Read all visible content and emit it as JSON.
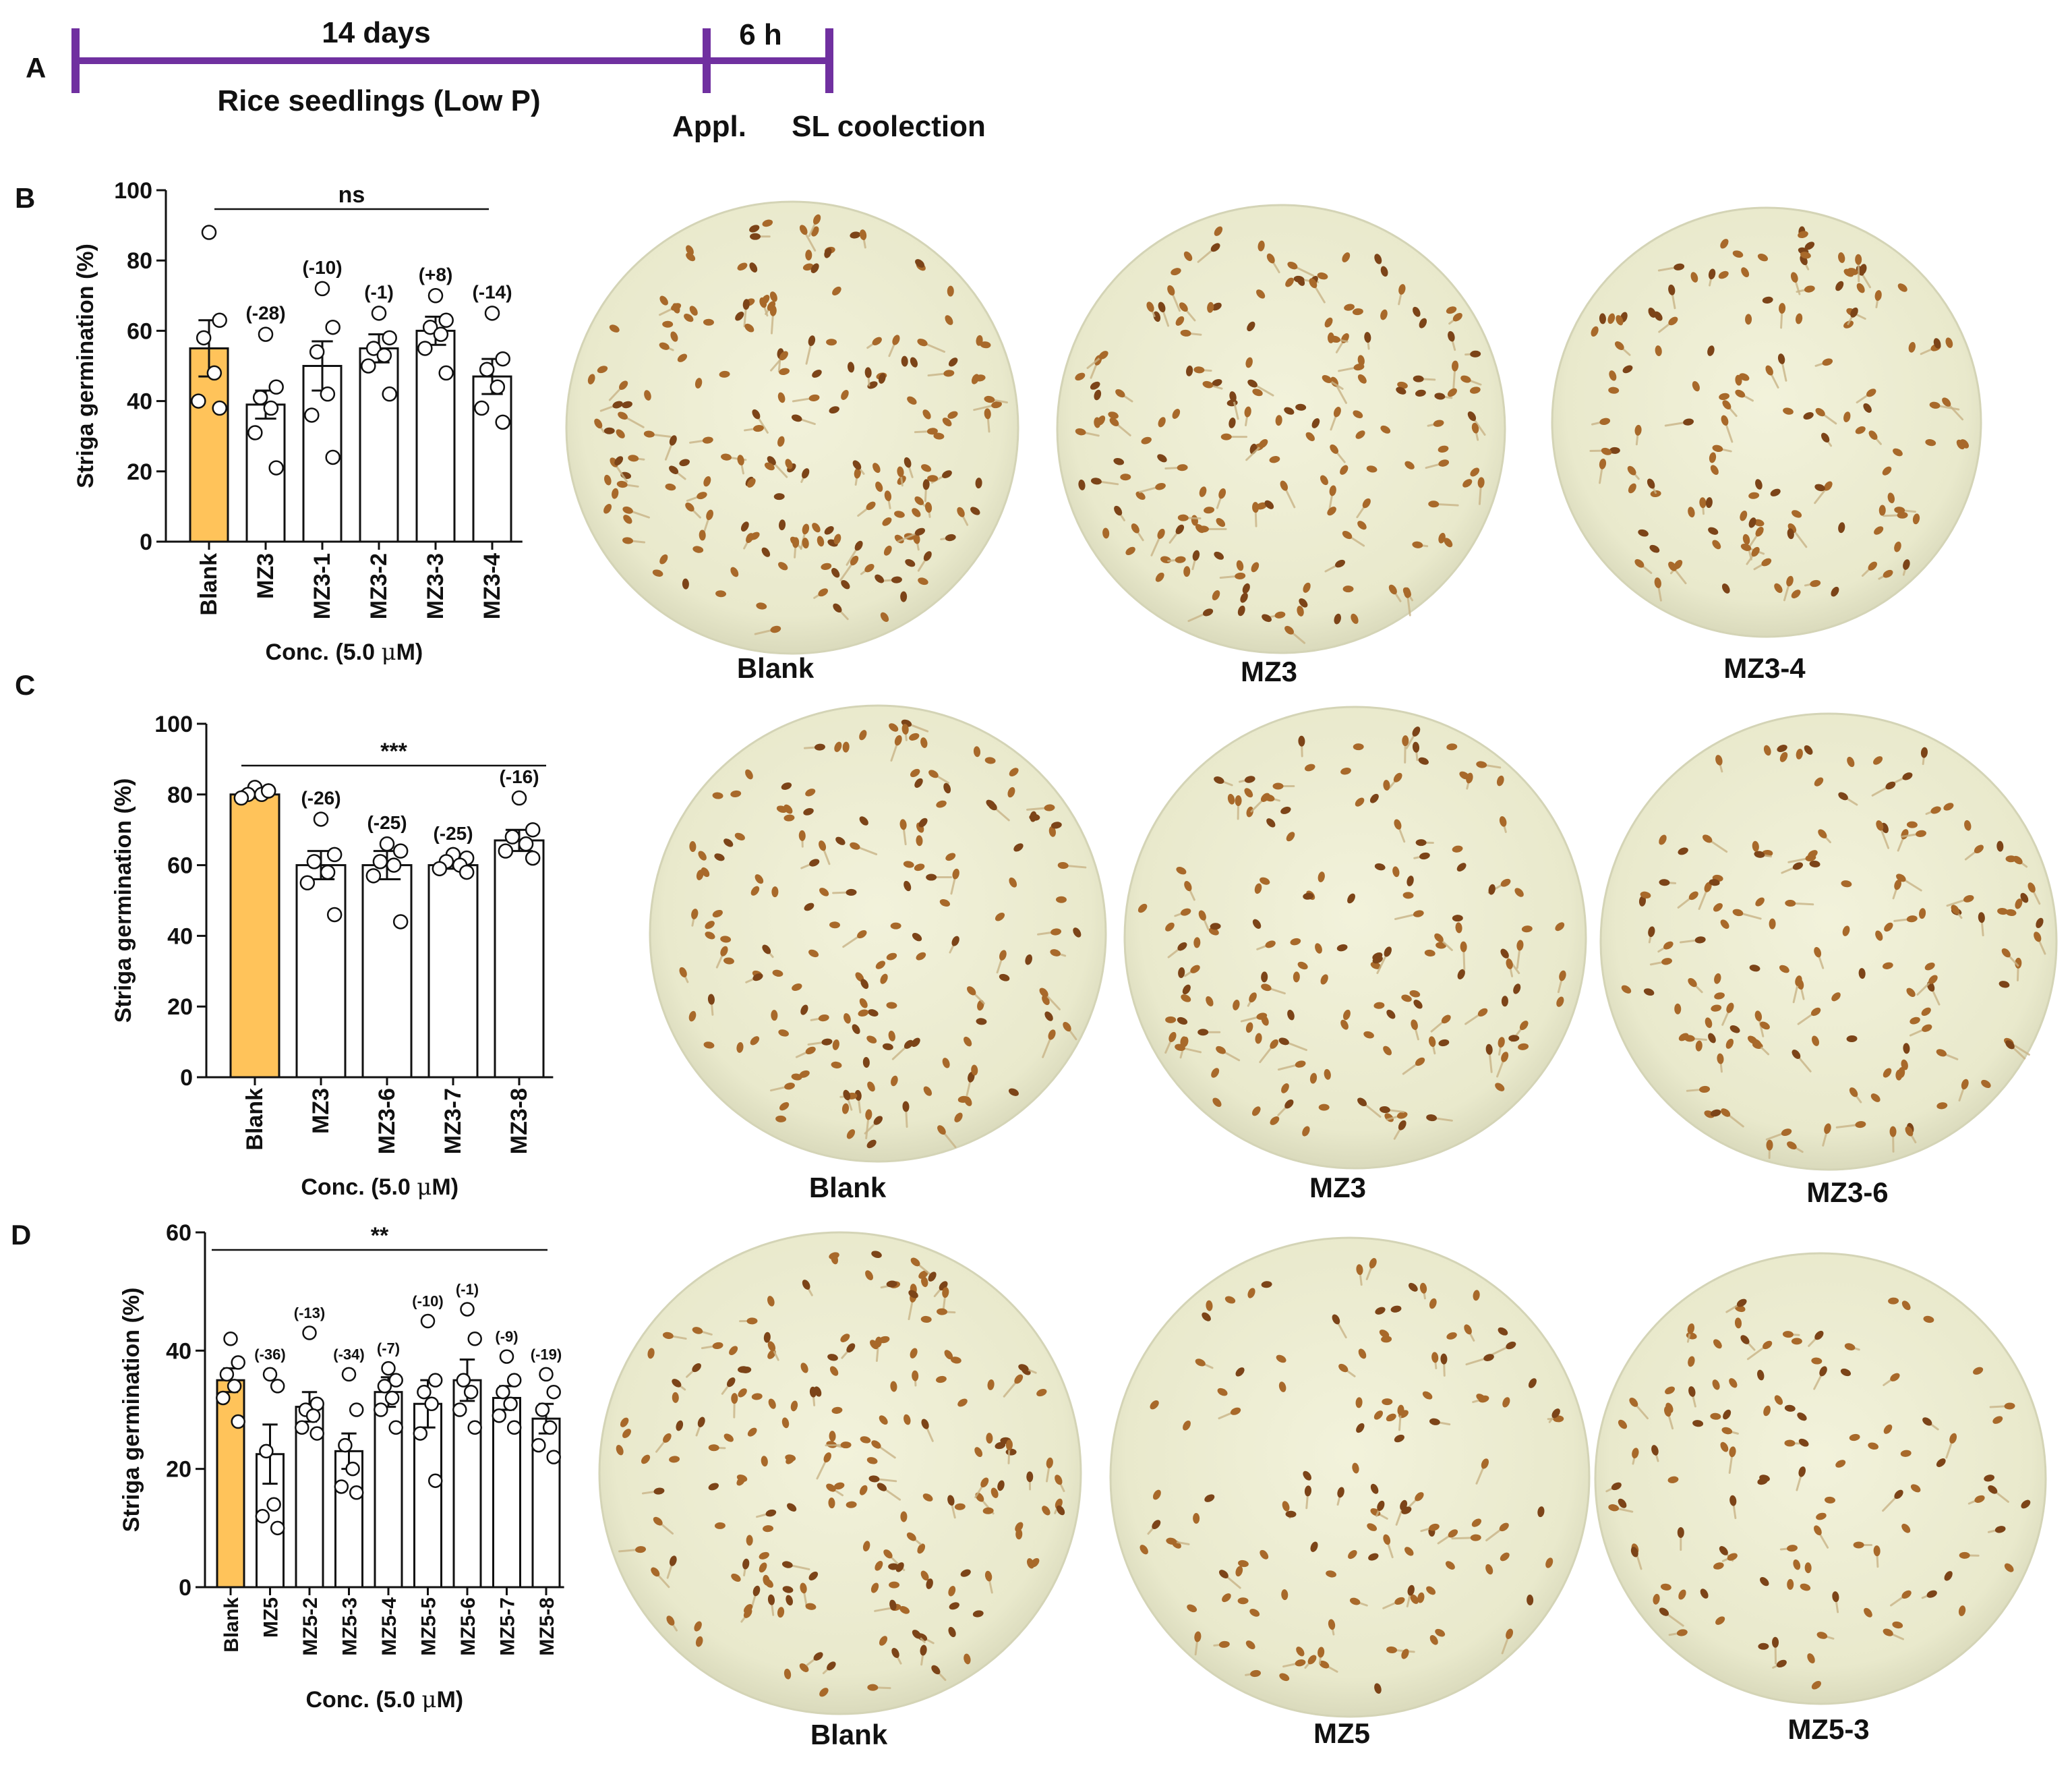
{
  "colors": {
    "timeline": "#7030A0",
    "blank_bar": "#FFC35A",
    "bar_edge": "#111111",
    "dish_fill": "#EEEED4",
    "dish_rim": "#D4D4B6",
    "seed": "#A8692A",
    "seed_dark": "#7C4418",
    "sprout": "#C9B487"
  },
  "panel_labels": {
    "a": "A",
    "b": "B",
    "c": "C",
    "d": "D"
  },
  "timeline": {
    "top_left": "14 days",
    "bottom_left": "Rice seedlings (Low P)",
    "top_right": "6 h",
    "label_application": "Appl.",
    "label_collection": "SL coolection"
  },
  "chart_data": [
    {
      "panel": "B",
      "type": "bar",
      "ylabel": "Striga germination (%)",
      "xlabel_prefix": "Conc. (5.0 ",
      "xlabel_mu": "μ",
      "xlabel_suffix": "M)",
      "ylim": [
        0,
        100
      ],
      "yticks": [
        0,
        20,
        40,
        60,
        80,
        100
      ],
      "significance": "ns",
      "categories": [
        "Blank",
        "MZ3",
        "MZ3-1",
        "MZ3-2",
        "MZ3-3",
        "MZ3-4"
      ],
      "values": [
        55,
        39,
        50,
        55,
        60,
        47
      ],
      "errors": [
        8,
        4,
        7,
        4,
        4,
        5
      ],
      "changes": [
        "",
        "(-28)",
        "(-10)",
        "(-1)",
        "(+8)",
        "(-14)"
      ],
      "points": [
        [
          88,
          63,
          58,
          48,
          40,
          38
        ],
        [
          59,
          44,
          41,
          38,
          31,
          21
        ],
        [
          72,
          61,
          54,
          42,
          36,
          24
        ],
        [
          65,
          58,
          55,
          53,
          50,
          42
        ],
        [
          70,
          63,
          61,
          59,
          55,
          48
        ],
        [
          65,
          52,
          49,
          44,
          38,
          34
        ]
      ],
      "photos": [
        "Blank",
        "MZ3",
        "MZ3-4"
      ]
    },
    {
      "panel": "C",
      "type": "bar",
      "ylabel": "Striga germination (%)",
      "xlabel_prefix": "Conc. (5.0 ",
      "xlabel_mu": "μ",
      "xlabel_suffix": "M)",
      "ylim": [
        0,
        100
      ],
      "yticks": [
        0,
        20,
        40,
        60,
        80,
        100
      ],
      "significance": "***",
      "categories": [
        "Blank",
        "MZ3",
        "MZ3-6",
        "MZ3-7",
        "MZ3-8"
      ],
      "values": [
        80,
        60,
        60,
        60,
        67
      ],
      "errors": [
        1,
        4,
        4,
        1,
        3
      ],
      "changes": [
        "",
        "(-26)",
        "(-25)",
        "(-25)",
        "(-16)"
      ],
      "points": [
        [
          82,
          81,
          80,
          80,
          79,
          81
        ],
        [
          73,
          63,
          61,
          58,
          55,
          46
        ],
        [
          66,
          64,
          61,
          60,
          57,
          44
        ],
        [
          63,
          62,
          61,
          60,
          59,
          58
        ],
        [
          79,
          70,
          68,
          66,
          64,
          62
        ]
      ],
      "photos": [
        "Blank",
        "MZ3",
        "MZ3-6"
      ]
    },
    {
      "panel": "D",
      "type": "bar",
      "ylabel": "Striga germination (%)",
      "xlabel_prefix": "Conc. (5.0 ",
      "xlabel_mu": "μ",
      "xlabel_suffix": "M)",
      "ylim": [
        0,
        60
      ],
      "yticks": [
        0,
        20,
        40,
        60
      ],
      "significance": "**",
      "categories": [
        "Blank",
        "MZ5",
        "MZ5-2",
        "MZ5-3",
        "MZ5-4",
        "MZ5-5",
        "MZ5-6",
        "MZ5-7",
        "MZ5-8"
      ],
      "values": [
        35,
        22.5,
        30.5,
        23,
        33,
        31,
        35,
        32,
        28.5
      ],
      "errors": [
        2,
        5,
        2.5,
        3,
        2.5,
        4,
        3.5,
        2,
        2.5
      ],
      "changes": [
        "",
        "(-36)",
        "(-13)",
        "(-34)",
        "(-7)",
        "(-10)",
        "(-1)",
        "(-9)",
        "(-19)"
      ],
      "points": [
        [
          42,
          38,
          36,
          34,
          32,
          28
        ],
        [
          36,
          34,
          23,
          14,
          12,
          10
        ],
        [
          43,
          31,
          30,
          29,
          27,
          26
        ],
        [
          36,
          30,
          24,
          20,
          17,
          16
        ],
        [
          37,
          35,
          34,
          32,
          30,
          27
        ],
        [
          45,
          35,
          33,
          31,
          26,
          18
        ],
        [
          47,
          42,
          35,
          33,
          30,
          27
        ],
        [
          39,
          35,
          33,
          31,
          29,
          27
        ],
        [
          36,
          33,
          30,
          27,
          24,
          22
        ]
      ],
      "photos": [
        "Blank",
        "MZ5",
        "MZ5-3"
      ]
    }
  ]
}
